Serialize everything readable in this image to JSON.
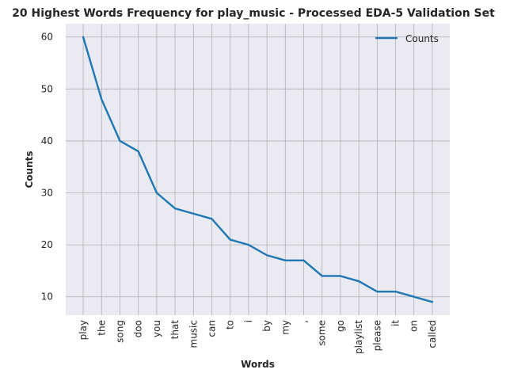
{
  "chart_data": {
    "type": "line",
    "title": "20 Highest Words Frequency for play_music - Processed EDA-5 Validation Set",
    "xlabel": "Words",
    "ylabel": "Counts",
    "categories": [
      "play",
      "the",
      "song",
      "doo",
      "you",
      "that",
      "music",
      "can",
      "to",
      "i",
      "by",
      "my",
      ",",
      "some",
      "go",
      "playlist",
      "please",
      "it",
      "on",
      "called"
    ],
    "series": [
      {
        "name": "Counts",
        "values": [
          60,
          48,
          40,
          38,
          30,
          27,
          26,
          25,
          21,
          20,
          18,
          17,
          17,
          14,
          14,
          13,
          11,
          11,
          10,
          9
        ],
        "color": "#1f77b4"
      }
    ],
    "ylim": [
      6.45,
      62.55
    ],
    "yticks": [
      10,
      20,
      30,
      40,
      50,
      60
    ],
    "grid": true,
    "legend": "top-right",
    "background": "#eaeaf2",
    "grid_color": "#b0b0b0"
  }
}
